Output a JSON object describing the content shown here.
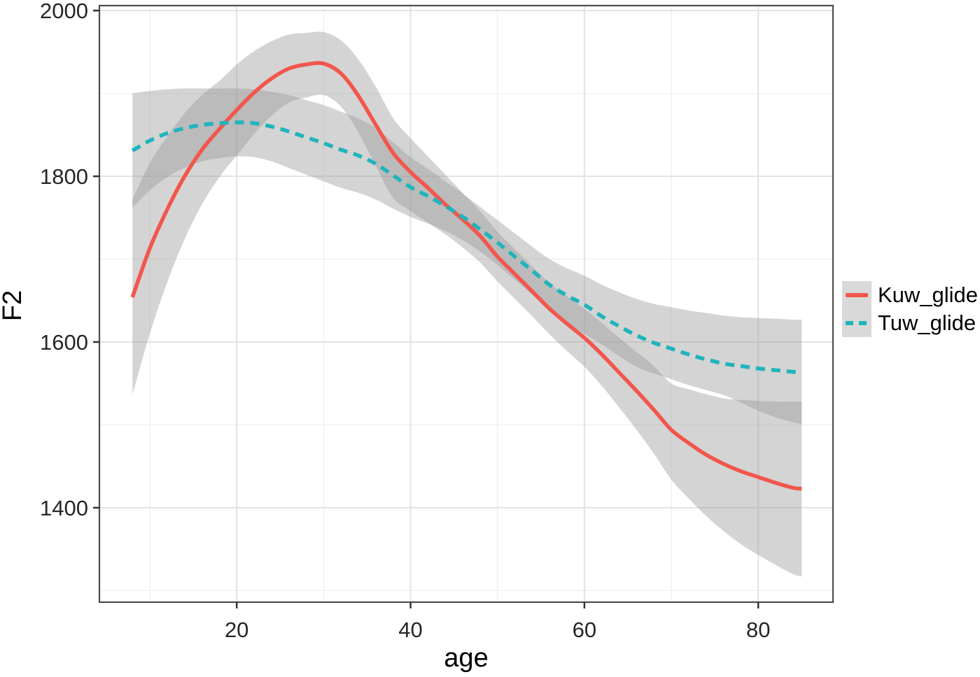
{
  "chart_data": {
    "type": "line",
    "title": "",
    "xlabel": "age",
    "ylabel": "F2",
    "x_ticks": [
      20,
      40,
      60,
      80
    ],
    "x_minor_ticks": [
      10,
      30,
      50,
      70
    ],
    "y_ticks": [
      1400,
      1600,
      1800,
      2000
    ],
    "y_minor_ticks": [
      1300,
      1500,
      1700,
      1900
    ],
    "x_domain": [
      4.2,
      88.6
    ],
    "y_domain": [
      1286,
      2006
    ],
    "grid": true,
    "legend_position": "right-middle",
    "ribbon_color": "#999999",
    "ribbon_opacity": 0.42,
    "x": [
      8,
      10,
      12,
      14,
      16,
      18,
      20,
      22,
      24,
      26,
      28,
      30,
      32,
      34,
      36,
      38,
      40,
      42,
      44,
      46,
      48,
      50,
      52,
      54,
      56,
      58,
      60,
      62,
      64,
      66,
      68,
      70,
      72,
      74,
      76,
      78,
      80,
      82,
      84,
      85
    ],
    "series": [
      {
        "name": "Kuw_glide",
        "color": "#f2564c",
        "linestyle": "solid",
        "y": [
          1654,
          1713,
          1760,
          1800,
          1832,
          1857,
          1880,
          1901,
          1918,
          1930,
          1935,
          1936,
          1924,
          1897,
          1862,
          1828,
          1805,
          1786,
          1766,
          1748,
          1728,
          1703,
          1682,
          1661,
          1640,
          1622,
          1605,
          1585,
          1563,
          1541,
          1518,
          1494,
          1478,
          1464,
          1453,
          1444,
          1437,
          1430,
          1424,
          1423
        ],
        "ci_lo": [
          1536,
          1610,
          1672,
          1724,
          1766,
          1799,
          1825,
          1851,
          1873,
          1889,
          1895,
          1898,
          1884,
          1853,
          1812,
          1774,
          1758,
          1744,
          1730,
          1714,
          1696,
          1673,
          1652,
          1631,
          1609,
          1589,
          1570,
          1547,
          1521,
          1494,
          1465,
          1434,
          1411,
          1390,
          1372,
          1356,
          1343,
          1331,
          1320,
          1317
        ],
        "ci_hi": [
          1772,
          1816,
          1848,
          1876,
          1898,
          1915,
          1935,
          1951,
          1963,
          1971,
          1973,
          1974,
          1964,
          1941,
          1908,
          1870,
          1846,
          1824,
          1802,
          1780,
          1758,
          1733,
          1712,
          1691,
          1671,
          1655,
          1640,
          1623,
          1605,
          1588,
          1571,
          1550,
          1543,
          1537,
          1532,
          1530,
          1529,
          1528,
          1528,
          1528
        ]
      },
      {
        "name": "Tuw_glide",
        "color": "#20b4bc",
        "linestyle": "dashed",
        "y": [
          1831,
          1843,
          1852,
          1858,
          1862,
          1864,
          1865,
          1864,
          1860,
          1854,
          1847,
          1840,
          1832,
          1825,
          1815,
          1801,
          1787,
          1776,
          1764,
          1751,
          1736,
          1720,
          1703,
          1686,
          1669,
          1656,
          1645,
          1631,
          1619,
          1608,
          1599,
          1592,
          1585,
          1579,
          1574,
          1571,
          1568,
          1566,
          1564,
          1563
        ],
        "ci_lo": [
          1762,
          1783,
          1799,
          1810,
          1818,
          1822,
          1824,
          1823,
          1818,
          1810,
          1802,
          1794,
          1786,
          1780,
          1772,
          1761,
          1751,
          1743,
          1734,
          1723,
          1709,
          1693,
          1675,
          1657,
          1638,
          1623,
          1610,
          1597,
          1583,
          1570,
          1562,
          1555,
          1548,
          1542,
          1536,
          1527,
          1517,
          1509,
          1503,
          1501
        ],
        "ci_hi": [
          1900,
          1903,
          1905,
          1906,
          1906,
          1906,
          1906,
          1905,
          1902,
          1898,
          1892,
          1886,
          1878,
          1870,
          1858,
          1841,
          1823,
          1809,
          1794,
          1779,
          1763,
          1747,
          1731,
          1715,
          1700,
          1689,
          1680,
          1669,
          1660,
          1652,
          1646,
          1642,
          1638,
          1635,
          1632,
          1630,
          1629,
          1628,
          1627,
          1627
        ]
      }
    ],
    "style": {
      "panel_background": "#ffffff",
      "panel_border": "#4d4d4d",
      "grid_major_color": "#e3e3e3",
      "grid_minor_color": "#f1f1f1",
      "tick_color": "#333333",
      "tick_label_color": "#262626",
      "legend_key_fill": "#d9d9d9"
    }
  }
}
